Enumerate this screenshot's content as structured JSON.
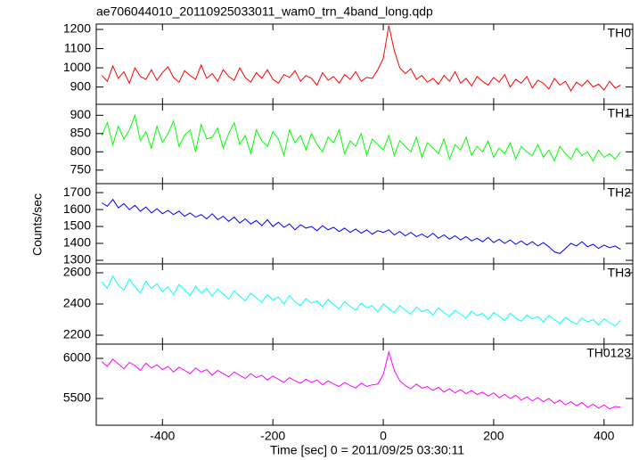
{
  "chart_data": {
    "type": "line",
    "title": "ae706044010_20110925033011_wam0_trn_4band_long.qdp",
    "ylabel": "Counts/sec",
    "xlabel": "Time [sec] 0 = 2011/09/25 03:30:11",
    "xlim": [
      -520,
      452
    ],
    "xticks": [
      -400,
      -200,
      0,
      200,
      400
    ],
    "x": [
      -510,
      -500,
      -490,
      -480,
      -470,
      -460,
      -450,
      -440,
      -430,
      -420,
      -410,
      -400,
      -390,
      -380,
      -370,
      -360,
      -350,
      -340,
      -330,
      -320,
      -310,
      -300,
      -290,
      -280,
      -270,
      -260,
      -250,
      -240,
      -230,
      -220,
      -210,
      -200,
      -190,
      -180,
      -170,
      -160,
      -150,
      -140,
      -130,
      -120,
      -110,
      -100,
      -90,
      -80,
      -70,
      -60,
      -50,
      -40,
      -30,
      -20,
      -10,
      0,
      10,
      20,
      30,
      40,
      50,
      60,
      70,
      80,
      90,
      100,
      110,
      120,
      130,
      140,
      150,
      160,
      170,
      180,
      190,
      200,
      210,
      220,
      230,
      240,
      250,
      260,
      270,
      280,
      290,
      300,
      310,
      320,
      330,
      340,
      350,
      360,
      370,
      380,
      390,
      400,
      410,
      420,
      430
    ],
    "panels": [
      {
        "ylim": [
          810,
          1228
        ],
        "yticks": [
          900,
          1000,
          1100,
          1200
        ],
        "series": [
          {
            "name": "TH0",
            "color": "#ff0000",
            "values": [
              960,
              930,
              1010,
              945,
              980,
              920,
              1000,
              955,
              940,
              990,
              935,
              975,
              1005,
              950,
              925,
              985,
              960,
              940,
              1015,
              945,
              970,
              930,
              990,
              955,
              935,
              1000,
              950,
              925,
              975,
              945,
              990,
              940,
              920,
              965,
              950,
              985,
              930,
              960,
              945,
              910,
              975,
              935,
              955,
              920,
              965,
              940,
              980,
              930,
              950,
              945,
              990,
              1050,
              1220,
              1090,
              1000,
              970,
              995,
              940,
              960,
              925,
              945,
              915,
              960,
              930,
              980,
              920,
              945,
              905,
              955,
              930,
              910,
              950,
              925,
              965,
              900,
              940,
              920,
              955,
              895,
              935,
              920,
              890,
              945,
              910,
              930,
              880,
              925,
              905,
              935,
              900,
              915,
              885,
              930,
              895,
              910
            ]
          }
        ]
      },
      {
        "ylim": [
          713,
          930
        ],
        "yticks": [
          750,
          800,
          850,
          900
        ],
        "series": [
          {
            "name": "TH1",
            "color": "#00ff00",
            "values": [
              845,
              880,
              820,
              870,
              835,
              860,
              900,
              830,
              855,
              810,
              870,
              825,
              850,
              885,
              815,
              845,
              860,
              800,
              875,
              835,
              840,
              865,
              810,
              850,
              880,
              820,
              845,
              795,
              860,
              830,
              815,
              855,
              835,
              790,
              860,
              825,
              845,
              805,
              850,
              820,
              800,
              840,
              825,
              860,
              795,
              830,
              815,
              850,
              790,
              835,
              820,
              805,
              845,
              790,
              830,
              815,
              800,
              840,
              785,
              825,
              810,
              795,
              835,
              780,
              820,
              805,
              840,
              790,
              815,
              800,
              830,
              785,
              810,
              795,
              825,
              780,
              815,
              800,
              790,
              820,
              785,
              805,
              775,
              815,
              795,
              780,
              810,
              790,
              800,
              775,
              805,
              785,
              795,
              780,
              800
            ]
          }
        ]
      },
      {
        "ylim": [
          1279,
          1753
        ],
        "yticks": [
          1300,
          1400,
          1500,
          1600,
          1700
        ],
        "series": [
          {
            "name": "TH2",
            "color": "#0000ff",
            "values": [
              1640,
              1620,
              1660,
              1610,
              1635,
              1600,
              1625,
              1590,
              1615,
              1580,
              1605,
              1575,
              1595,
              1570,
              1590,
              1560,
              1580,
              1555,
              1570,
              1545,
              1575,
              1540,
              1560,
              1530,
              1555,
              1520,
              1545,
              1515,
              1535,
              1505,
              1540,
              1500,
              1525,
              1495,
              1515,
              1480,
              1510,
              1490,
              1500,
              1475,
              1505,
              1480,
              1495,
              1470,
              1490,
              1465,
              1485,
              1460,
              1480,
              1455,
              1475,
              1465,
              1480,
              1450,
              1470,
              1445,
              1465,
              1440,
              1455,
              1435,
              1460,
              1430,
              1450,
              1425,
              1445,
              1420,
              1440,
              1415,
              1430,
              1410,
              1435,
              1405,
              1425,
              1400,
              1420,
              1395,
              1415,
              1390,
              1410,
              1385,
              1405,
              1380,
              1350,
              1340,
              1370,
              1400,
              1385,
              1410,
              1380,
              1395,
              1370,
              1390,
              1375,
              1385,
              1365
            ]
          }
        ]
      },
      {
        "ylim": [
          2143,
          2657
        ],
        "yticks": [
          2200,
          2400,
          2600
        ],
        "series": [
          {
            "name": "TH3",
            "color": "#00ffff",
            "values": [
              2540,
              2500,
              2580,
              2520,
              2490,
              2560,
              2510,
              2470,
              2545,
              2500,
              2530,
              2480,
              2510,
              2460,
              2525,
              2490,
              2455,
              2515,
              2470,
              2500,
              2450,
              2495,
              2465,
              2430,
              2485,
              2450,
              2420,
              2470,
              2440,
              2410,
              2460,
              2425,
              2445,
              2400,
              2455,
              2415,
              2390,
              2435,
              2405,
              2420,
              2380,
              2430,
              2395,
              2370,
              2415,
              2385,
              2360,
              2405,
              2375,
              2390,
              2350,
              2400,
              2370,
              2345,
              2390,
              2360,
              2335,
              2380,
              2350,
              2365,
              2330,
              2375,
              2345,
              2320,
              2360,
              2335,
              2310,
              2355,
              2325,
              2340,
              2300,
              2345,
              2320,
              2295,
              2340,
              2310,
              2290,
              2330,
              2305,
              2320,
              2285,
              2325,
              2300,
              2275,
              2315,
              2290,
              2270,
              2310,
              2285,
              2300,
              2265,
              2305,
              2280,
              2260,
              2295
            ]
          }
        ]
      },
      {
        "ylim": [
          5167,
          6178
        ],
        "yticks": [
          5500,
          6000
        ],
        "series": [
          {
            "name": "TH0123",
            "color": "#ff00ff",
            "values": [
              5960,
              5900,
              5990,
              5930,
              5870,
              5950,
              5910,
              5850,
              5940,
              5880,
              5920,
              5860,
              5900,
              5830,
              5890,
              5850,
              5810,
              5880,
              5830,
              5860,
              5790,
              5850,
              5810,
              5770,
              5830,
              5790,
              5750,
              5810,
              5760,
              5790,
              5730,
              5780,
              5740,
              5700,
              5760,
              5720,
              5690,
              5740,
              5700,
              5730,
              5670,
              5720,
              5680,
              5650,
              5700,
              5660,
              5630,
              5690,
              5650,
              5670,
              5680,
              5800,
              6080,
              5850,
              5720,
              5660,
              5620,
              5680,
              5630,
              5650,
              5600,
              5640,
              5580,
              5620,
              5570,
              5610,
              5560,
              5600,
              5550,
              5580,
              5530,
              5570,
              5510,
              5550,
              5500,
              5540,
              5480,
              5520,
              5470,
              5510,
              5460,
              5500,
              5440,
              5480,
              5420,
              5460,
              5410,
              5450,
              5390,
              5430,
              5380,
              5420,
              5370,
              5400,
              5390
            ]
          }
        ]
      }
    ]
  }
}
